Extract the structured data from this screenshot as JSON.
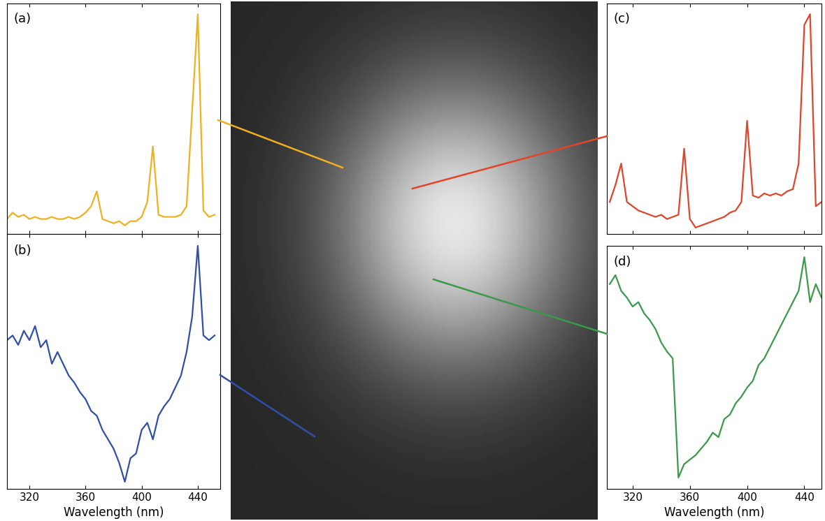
{
  "chart_data": [
    {
      "type": "line",
      "title": "(a)",
      "color": "#f0b020",
      "tick_labels": false,
      "x": [
        304,
        308,
        312,
        316,
        320,
        324,
        328,
        332,
        336,
        340,
        344,
        348,
        352,
        356,
        360,
        364,
        368,
        372,
        376,
        380,
        384,
        388,
        392,
        396,
        400,
        404,
        408,
        412,
        416,
        420,
        424,
        428,
        432,
        436,
        440,
        444,
        448,
        452
      ],
      "values": [
        0.04,
        0.07,
        0.05,
        0.06,
        0.04,
        0.05,
        0.04,
        0.04,
        0.05,
        0.04,
        0.04,
        0.05,
        0.04,
        0.05,
        0.07,
        0.1,
        0.17,
        0.04,
        0.03,
        0.02,
        0.03,
        0.01,
        0.03,
        0.03,
        0.05,
        0.12,
        0.38,
        0.06,
        0.05,
        0.05,
        0.05,
        0.06,
        0.1,
        0.55,
        1.0,
        0.08,
        0.05,
        0.06
      ],
      "xlim": [
        304,
        456
      ],
      "xticks": [
        320,
        360,
        400,
        440
      ],
      "ylim": [
        -0.03,
        1.05
      ],
      "yticks": []
    },
    {
      "type": "line",
      "title": "(b)",
      "color": "#2f4fa8",
      "tick_labels": "x",
      "x_label": "Wavelength (nm)",
      "x": [
        304,
        308,
        312,
        316,
        320,
        324,
        328,
        332,
        336,
        340,
        344,
        348,
        352,
        356,
        360,
        364,
        368,
        372,
        376,
        380,
        384,
        388,
        392,
        396,
        400,
        404,
        408,
        412,
        416,
        420,
        424,
        428,
        432,
        436,
        440,
        444,
        448,
        452
      ],
      "values": [
        0.6,
        0.62,
        0.58,
        0.64,
        0.6,
        0.66,
        0.57,
        0.6,
        0.5,
        0.55,
        0.5,
        0.45,
        0.42,
        0.38,
        0.35,
        0.3,
        0.28,
        0.22,
        0.18,
        0.14,
        0.08,
        0.0,
        0.1,
        0.12,
        0.22,
        0.25,
        0.18,
        0.28,
        0.32,
        0.35,
        0.4,
        0.45,
        0.55,
        0.7,
        1.0,
        0.62,
        0.6,
        0.62
      ],
      "xlim": [
        304,
        456
      ],
      "xticks": [
        320,
        360,
        400,
        440
      ],
      "ylim": [
        -0.03,
        1.05
      ],
      "yticks": []
    },
    {
      "type": "line",
      "title": "(c)",
      "color": "#e0452a",
      "tick_labels": false,
      "x": [
        304,
        308,
        312,
        316,
        320,
        324,
        328,
        332,
        336,
        340,
        344,
        348,
        352,
        356,
        360,
        364,
        368,
        372,
        376,
        380,
        384,
        388,
        392,
        396,
        400,
        404,
        408,
        412,
        416,
        420,
        424,
        428,
        432,
        436,
        440,
        444,
        448,
        452
      ],
      "values": [
        0.12,
        0.2,
        0.3,
        0.12,
        0.1,
        0.08,
        0.07,
        0.06,
        0.05,
        0.06,
        0.04,
        0.05,
        0.06,
        0.37,
        0.04,
        0.0,
        0.01,
        0.02,
        0.03,
        0.04,
        0.05,
        0.07,
        0.08,
        0.12,
        0.5,
        0.15,
        0.14,
        0.16,
        0.15,
        0.16,
        0.15,
        0.17,
        0.18,
        0.3,
        0.95,
        1.0,
        0.1,
        0.12
      ],
      "xlim": [
        302,
        452
      ],
      "xticks": [
        320,
        360,
        400,
        440
      ],
      "ylim": [
        -0.03,
        1.05
      ],
      "yticks": []
    },
    {
      "type": "line",
      "title": "(d)",
      "color": "#3a9a4a",
      "tick_labels": "x",
      "x_label": "Wavelength (nm)",
      "x": [
        304,
        308,
        312,
        316,
        320,
        324,
        328,
        332,
        336,
        340,
        344,
        348,
        352,
        356,
        360,
        364,
        368,
        372,
        376,
        380,
        384,
        388,
        392,
        396,
        400,
        404,
        408,
        412,
        416,
        420,
        424,
        428,
        432,
        436,
        440,
        444,
        448,
        452
      ],
      "values": [
        0.88,
        0.92,
        0.85,
        0.82,
        0.78,
        0.8,
        0.75,
        0.72,
        0.68,
        0.62,
        0.58,
        0.55,
        0.02,
        0.08,
        0.1,
        0.12,
        0.15,
        0.18,
        0.22,
        0.2,
        0.28,
        0.3,
        0.35,
        0.38,
        0.42,
        0.45,
        0.52,
        0.55,
        0.6,
        0.65,
        0.7,
        0.75,
        0.8,
        0.85,
        1.0,
        0.8,
        0.88,
        0.82
      ],
      "xlim": [
        302,
        452
      ],
      "xticks": [
        320,
        360,
        400,
        440
      ],
      "ylim": [
        -0.03,
        1.05
      ],
      "yticks": []
    }
  ]
}
